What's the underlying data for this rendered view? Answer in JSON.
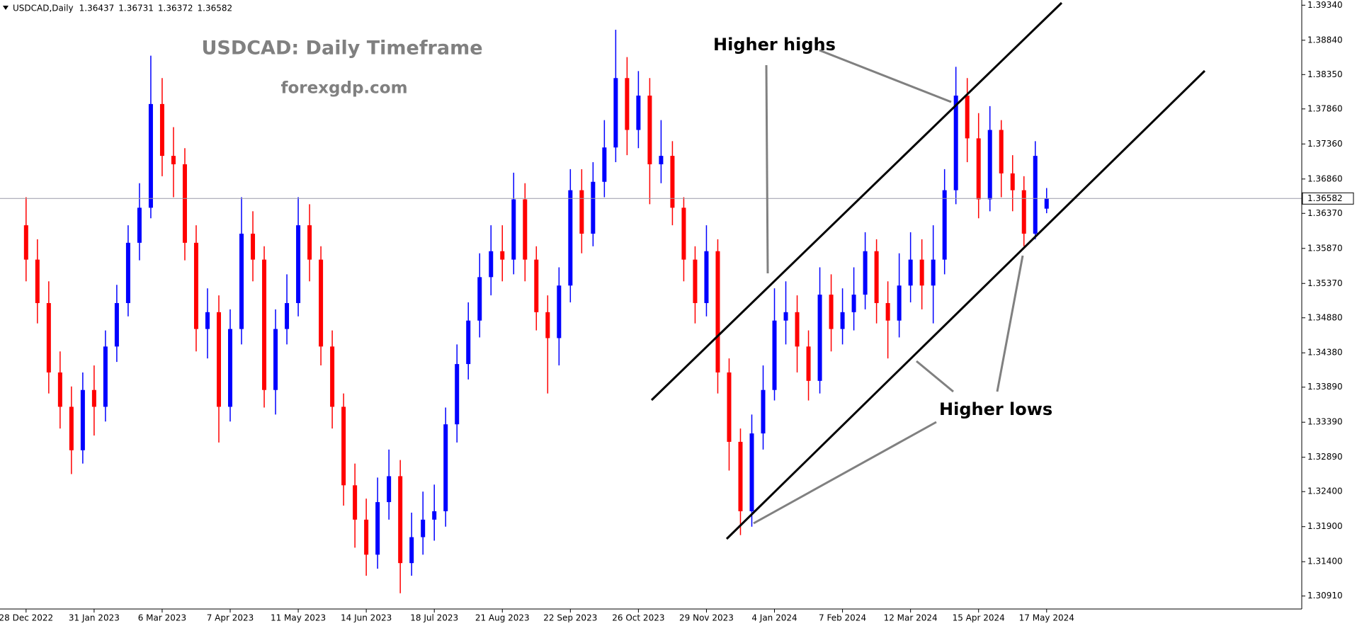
{
  "chart_data": {
    "type": "candlestick",
    "symbol": "USDCAD,Daily",
    "title": "USDCAD: Daily Timeframe",
    "subtitle": "forexgdp.com",
    "annotations": [
      "Higher highs",
      "Higher lows"
    ],
    "up_color": "#0000ff",
    "down_color": "#ff0000",
    "open": [
      1.362,
      1.3571,
      1.3509,
      1.341,
      1.3361,
      1.3299,
      1.3385,
      1.3361,
      1.3447,
      1.3509,
      1.3595,
      1.3645,
      1.3793,
      1.3719,
      1.3707,
      1.3595,
      1.3472,
      1.3496,
      1.3361,
      1.3472,
      1.3608,
      1.3571,
      1.3385,
      1.3472,
      1.3509,
      1.362,
      1.3571,
      1.3447,
      1.3361,
      1.3249,
      1.32,
      1.315,
      1.3225,
      1.3262,
      1.3138,
      1.3175,
      1.32,
      1.3212,
      1.3336,
      1.3422,
      1.3484,
      1.3546,
      1.3583,
      1.3571,
      1.3657,
      1.3571,
      1.3496,
      1.3459,
      1.3534,
      1.367,
      1.3608,
      1.3682,
      1.3731,
      1.383,
      1.3756,
      1.3805,
      1.3707,
      1.3719,
      1.3645,
      1.3571,
      1.3509,
      1.3583,
      1.341,
      1.3311,
      1.3212,
      1.3323,
      1.3385,
      1.3484,
      1.3496,
      1.3447,
      1.3398,
      1.3521,
      1.3472,
      1.3496,
      1.3521,
      1.3583,
      1.3509,
      1.3484,
      1.3534,
      1.3571,
      1.3534,
      1.3571,
      1.367,
      1.3805,
      1.3744,
      1.3657,
      1.3756,
      1.3694,
      1.367,
      1.3608,
      1.36437
    ],
    "high": [
      1.366,
      1.36,
      1.354,
      1.344,
      1.339,
      1.341,
      1.342,
      1.347,
      1.3535,
      1.362,
      1.368,
      1.3862,
      1.383,
      1.376,
      1.373,
      1.362,
      1.353,
      1.352,
      1.35,
      1.366,
      1.364,
      1.359,
      1.35,
      1.355,
      1.366,
      1.365,
      1.359,
      1.347,
      1.338,
      1.328,
      1.323,
      1.326,
      1.33,
      1.3285,
      1.321,
      1.324,
      1.325,
      1.336,
      1.345,
      1.351,
      1.358,
      1.362,
      1.362,
      1.3695,
      1.368,
      1.359,
      1.352,
      1.356,
      1.37,
      1.37,
      1.371,
      1.377,
      1.3899,
      1.386,
      1.384,
      1.383,
      1.377,
      1.374,
      1.366,
      1.359,
      1.362,
      1.36,
      1.343,
      1.333,
      1.335,
      1.342,
      1.353,
      1.354,
      1.352,
      1.347,
      1.356,
      1.355,
      1.353,
      1.356,
      1.361,
      1.36,
      1.354,
      1.358,
      1.361,
      1.36,
      1.362,
      1.37,
      1.3846,
      1.383,
      1.378,
      1.379,
      1.377,
      1.372,
      1.369,
      1.374,
      1.36731
    ],
    "low": [
      1.354,
      1.348,
      1.338,
      1.333,
      1.3265,
      1.328,
      1.332,
      1.334,
      1.3425,
      1.349,
      1.357,
      1.363,
      1.369,
      1.366,
      1.357,
      1.344,
      1.343,
      1.331,
      1.334,
      1.345,
      1.354,
      1.336,
      1.335,
      1.345,
      1.349,
      1.354,
      1.342,
      1.333,
      1.322,
      1.316,
      1.312,
      1.313,
      1.32,
      1.3095,
      1.312,
      1.315,
      1.317,
      1.319,
      1.331,
      1.34,
      1.346,
      1.352,
      1.354,
      1.355,
      1.354,
      1.347,
      1.338,
      1.342,
      1.351,
      1.358,
      1.359,
      1.366,
      1.371,
      1.372,
      1.373,
      1.365,
      1.368,
      1.362,
      1.354,
      1.348,
      1.349,
      1.338,
      1.327,
      1.3178,
      1.319,
      1.33,
      1.337,
      1.345,
      1.341,
      1.337,
      1.338,
      1.344,
      1.345,
      1.347,
      1.35,
      1.348,
      1.343,
      1.346,
      1.351,
      1.35,
      1.348,
      1.355,
      1.365,
      1.371,
      1.363,
      1.364,
      1.366,
      1.364,
      1.359,
      1.36,
      1.36372
    ],
    "close": [
      1.3571,
      1.3509,
      1.341,
      1.3361,
      1.3299,
      1.3385,
      1.3361,
      1.3447,
      1.3509,
      1.3595,
      1.3645,
      1.3793,
      1.3719,
      1.3707,
      1.3595,
      1.3472,
      1.3496,
      1.3361,
      1.3472,
      1.3608,
      1.3571,
      1.3385,
      1.3472,
      1.3509,
      1.362,
      1.3571,
      1.3447,
      1.3361,
      1.3249,
      1.32,
      1.315,
      1.3225,
      1.3262,
      1.3138,
      1.3175,
      1.32,
      1.3212,
      1.3336,
      1.3422,
      1.3484,
      1.3546,
      1.3583,
      1.3571,
      1.3657,
      1.3571,
      1.3496,
      1.3459,
      1.3534,
      1.367,
      1.3608,
      1.3682,
      1.3731,
      1.383,
      1.3756,
      1.3805,
      1.3707,
      1.3719,
      1.3645,
      1.3571,
      1.3509,
      1.3583,
      1.341,
      1.3311,
      1.3212,
      1.3323,
      1.3385,
      1.3484,
      1.3496,
      1.3447,
      1.3398,
      1.3521,
      1.3472,
      1.3496,
      1.3521,
      1.3583,
      1.3509,
      1.3484,
      1.3534,
      1.3571,
      1.3534,
      1.3571,
      1.367,
      1.3805,
      1.3744,
      1.3657,
      1.3756,
      1.3694,
      1.367,
      1.3608,
      1.3719,
      1.36582
    ],
    "xlim": [
      -2.3,
      112.5
    ],
    "ylim": [
      1.30725,
      1.39414
    ],
    "yticks": [
      {
        "value": 1.3934,
        "label": "1.39340"
      },
      {
        "value": 1.3884,
        "label": "1.38840"
      },
      {
        "value": 1.3835,
        "label": "1.38350"
      },
      {
        "value": 1.3786,
        "label": "1.37860"
      },
      {
        "value": 1.3736,
        "label": "1.37360"
      },
      {
        "value": 1.3686,
        "label": "1.36860"
      },
      {
        "value": 1.3637,
        "label": "1.36370"
      },
      {
        "value": 1.3587,
        "label": "1.35870"
      },
      {
        "value": 1.3537,
        "label": "1.35370"
      },
      {
        "value": 1.3488,
        "label": "1.34880"
      },
      {
        "value": 1.3438,
        "label": "1.34380"
      },
      {
        "value": 1.3389,
        "label": "1.33890"
      },
      {
        "value": 1.3339,
        "label": "1.33390"
      },
      {
        "value": 1.3289,
        "label": "1.32890"
      },
      {
        "value": 1.324,
        "label": "1.32400"
      },
      {
        "value": 1.319,
        "label": "1.31900"
      },
      {
        "value": 1.314,
        "label": "1.31400"
      },
      {
        "value": 1.3091,
        "label": "1.30910"
      }
    ],
    "xticks": [
      {
        "value": 0,
        "label": "28 Dec 2022"
      },
      {
        "value": 6,
        "label": "31 Jan 2023"
      },
      {
        "value": 12,
        "label": "6 Mar 2023"
      },
      {
        "value": 18,
        "label": "7 Apr 2023"
      },
      {
        "value": 24,
        "label": "11 May 2023"
      },
      {
        "value": 30,
        "label": "14 Jun 2023"
      },
      {
        "value": 36,
        "label": "18 Jul 2023"
      },
      {
        "value": 42,
        "label": "21 Aug 2023"
      },
      {
        "value": 48,
        "label": "22 Sep 2023"
      },
      {
        "value": 54,
        "label": "26 Oct 2023"
      },
      {
        "value": 60,
        "label": "29 Nov 2023"
      },
      {
        "value": 66,
        "label": "4 Jan 2024"
      },
      {
        "value": 72,
        "label": "7 Feb 2024"
      },
      {
        "value": 78,
        "label": "12 Mar 2024"
      },
      {
        "value": 84,
        "label": "15 Apr 2024"
      },
      {
        "value": 90,
        "label": "17 May 2024"
      }
    ]
  }
}
